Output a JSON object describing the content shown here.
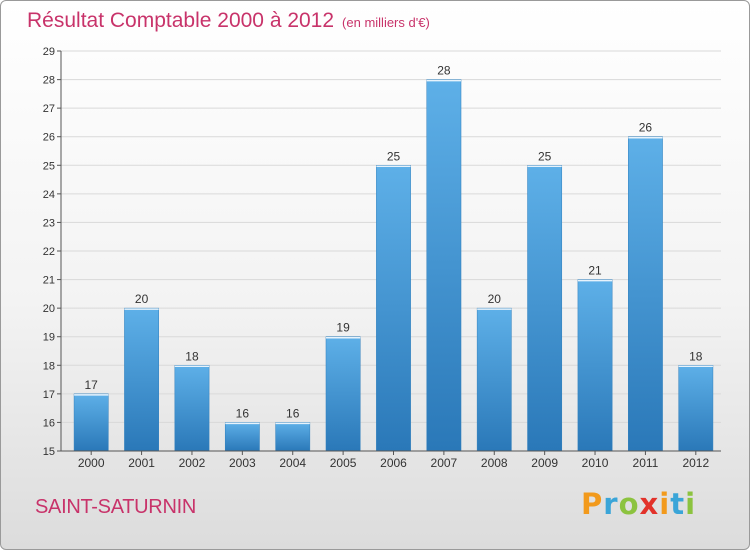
{
  "chart_data": {
    "type": "bar",
    "title": "Résultat Comptable 2000 à 2012",
    "subtitle": "(en milliers d'€)",
    "categories": [
      "2000",
      "2001",
      "2002",
      "2003",
      "2004",
      "2005",
      "2006",
      "2007",
      "2008",
      "2009",
      "2010",
      "2011",
      "2012"
    ],
    "values": [
      17,
      20,
      18,
      16,
      16,
      19,
      25,
      28,
      20,
      25,
      21,
      26,
      18
    ],
    "ylim": [
      15,
      29
    ],
    "yticks": [
      15,
      16,
      17,
      18,
      19,
      20,
      21,
      22,
      23,
      24,
      25,
      26,
      27,
      28,
      29
    ],
    "grid": true,
    "xlabel": "",
    "ylabel": "",
    "bar_color": "#4a9fdc"
  },
  "footer": {
    "location": "SAINT-SATURNIN",
    "brand_letters": [
      {
        "char": "P",
        "color": "#f29a1c"
      },
      {
        "char": "r",
        "color": "#3aa5d8"
      },
      {
        "char": "o",
        "color": "#8cc33f"
      },
      {
        "char": "x",
        "color": "#e2322a"
      },
      {
        "char": "i",
        "color": "#f29a1c"
      },
      {
        "char": "t",
        "color": "#3aa5d8"
      },
      {
        "char": "i",
        "color": "#8cc33f"
      }
    ]
  }
}
